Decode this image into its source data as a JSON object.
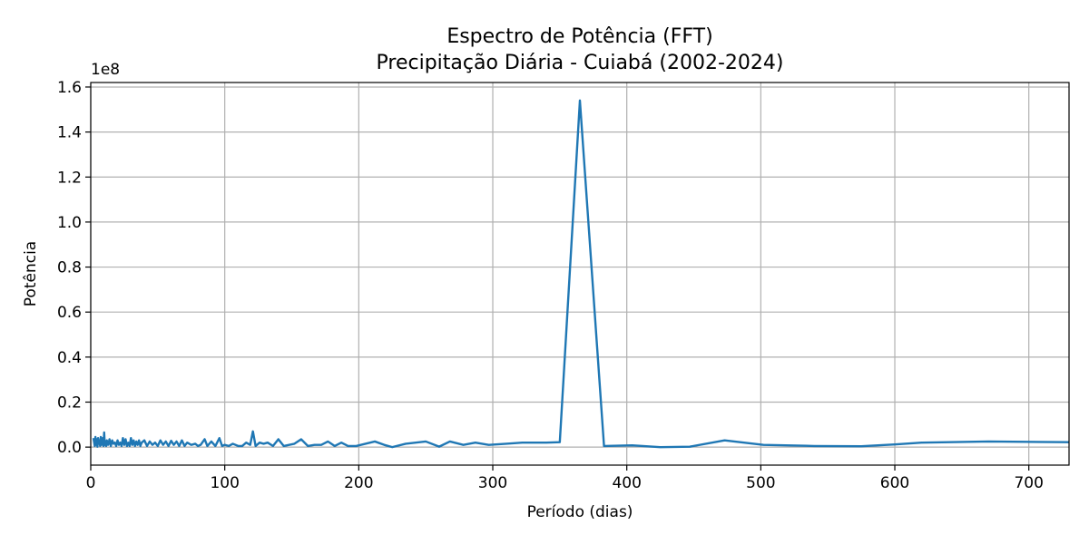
{
  "chart_data": {
    "type": "line",
    "title": "Espectro de Potência (FFT)",
    "subtitle": "Precipitação Diária - Cuiabá (2002-2024)",
    "xlabel": "Período (dias)",
    "ylabel": "Potência",
    "y_multiplier_label": "1e8",
    "xlim": [
      0,
      730
    ],
    "ylim": [
      -0.08,
      1.62
    ],
    "y_scale_factor": 100000000,
    "x_ticks": [
      0,
      100,
      200,
      300,
      400,
      500,
      600,
      700
    ],
    "x_tick_labels": [
      "0",
      "100",
      "200",
      "300",
      "400",
      "500",
      "600",
      "700"
    ],
    "y_ticks": [
      0.0,
      0.2,
      0.4,
      0.6,
      0.8,
      1.0,
      1.2,
      1.4,
      1.6
    ],
    "y_tick_labels": [
      "0.0",
      "0.2",
      "0.4",
      "0.6",
      "0.8",
      "1.0",
      "1.2",
      "1.4",
      "1.6"
    ],
    "grid": true,
    "line_color": "#1f77b4",
    "series": [
      {
        "x": [
          2,
          3,
          3.5,
          4,
          4.5,
          5,
          5.5,
          6,
          6.5,
          7,
          7.5,
          8,
          8.5,
          9,
          9.5,
          10,
          10.5,
          11,
          11.5,
          12,
          13,
          14,
          15,
          16,
          17,
          18,
          19,
          20,
          21,
          22,
          23,
          24,
          25,
          26,
          27,
          28,
          29,
          30,
          31,
          32,
          33,
          34,
          35,
          36,
          37,
          38,
          40,
          42,
          44,
          46,
          48,
          50,
          52,
          54,
          56,
          58,
          60,
          62,
          64,
          66,
          68,
          70,
          72,
          75,
          78,
          80,
          82,
          85,
          87,
          90,
          93,
          96,
          98,
          100,
          103,
          106,
          110,
          113,
          116,
          119,
          121,
          123,
          126,
          129,
          132,
          136,
          140,
          144,
          148,
          152,
          157,
          162,
          167,
          172,
          177,
          182,
          187,
          192,
          198,
          205,
          212,
          219,
          225,
          235,
          250,
          260,
          268,
          278,
          287,
          297,
          310,
          322,
          340,
          350,
          365,
          383,
          404,
          425,
          447,
          473,
          502,
          540,
          575,
          600,
          620,
          670,
          730
        ],
        "y": [
          0.04,
          0.005,
          0.045,
          0.01,
          0.035,
          0.002,
          0.04,
          0.015,
          0.03,
          0.005,
          0.045,
          0.01,
          0.02,
          0.04,
          0.005,
          0.065,
          0.01,
          0.025,
          0.005,
          0.03,
          0.01,
          0.035,
          0.005,
          0.03,
          0.015,
          0.02,
          0.005,
          0.03,
          0.01,
          0.02,
          0.005,
          0.04,
          0.01,
          0.035,
          0.005,
          0.02,
          0.005,
          0.04,
          0.01,
          0.03,
          0.005,
          0.025,
          0.01,
          0.03,
          0.005,
          0.02,
          0.03,
          0.005,
          0.025,
          0.01,
          0.02,
          0.005,
          0.03,
          0.01,
          0.025,
          0.005,
          0.028,
          0.01,
          0.025,
          0.005,
          0.03,
          0.005,
          0.02,
          0.01,
          0.015,
          0.005,
          0.01,
          0.035,
          0.005,
          0.025,
          0.005,
          0.04,
          0.005,
          0.01,
          0.005,
          0.015,
          0.005,
          0.005,
          0.02,
          0.01,
          0.07,
          0.005,
          0.02,
          0.015,
          0.02,
          0.005,
          0.035,
          0.005,
          0.01,
          0.015,
          0.035,
          0.005,
          0.01,
          0.01,
          0.025,
          0.005,
          0.02,
          0.005,
          0.005,
          0.015,
          0.025,
          0.01,
          0.0,
          0.015,
          0.025,
          0.002,
          0.025,
          0.01,
          0.02,
          0.01,
          0.015,
          0.02,
          0.02,
          0.022,
          1.54,
          0.005,
          0.008,
          0.0,
          0.002,
          0.03,
          0.01,
          0.005,
          0.004,
          0.012,
          0.02,
          0.025,
          0.022
        ]
      }
    ]
  }
}
